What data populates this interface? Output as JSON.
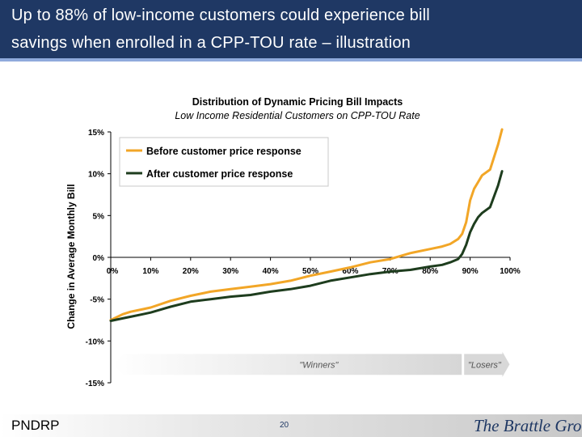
{
  "slide": {
    "title_line1": "Up to 88% of low-income customers could experience bill",
    "title_line2": "savings when enrolled in a CPP-TOU rate – illustration",
    "footer_left": "PNDRP",
    "page_number": "20",
    "brand": "The Brattle Group"
  },
  "colors": {
    "title_bg": "#1f3864",
    "series_before": "#f2a627",
    "series_after": "#1e3d1e",
    "arrow_fill": "#e2e2e2"
  },
  "chart_data": {
    "type": "line",
    "title": "Distribution of Dynamic Pricing Bill Impacts",
    "subtitle": "Low Income Residential Customers on CPP-TOU Rate",
    "xlabel": "",
    "ylabel": "Change in Average Monthly Bill",
    "x_unit": "percent of customers",
    "y_unit": "percent change",
    "xlim": [
      0,
      100
    ],
    "ylim": [
      -15,
      15
    ],
    "x_ticks": [
      "0%",
      "10%",
      "20%",
      "30%",
      "40%",
      "50%",
      "60%",
      "70%",
      "80%",
      "90%",
      "100%"
    ],
    "y_ticks": [
      "15%",
      "10%",
      "5%",
      "0%",
      "-5%",
      "-10%",
      "-15%"
    ],
    "grid": false,
    "legend_position": "top-left",
    "series": [
      {
        "name": "Before customer price response",
        "x": [
          0,
          3,
          5,
          8,
          10,
          15,
          20,
          25,
          30,
          35,
          40,
          45,
          50,
          55,
          60,
          65,
          70,
          75,
          80,
          83,
          85,
          87,
          88,
          89,
          90,
          91,
          92,
          93,
          95,
          97,
          98
        ],
        "y": [
          -7.5,
          -6.8,
          -6.5,
          -6.2,
          -6.0,
          -5.2,
          -4.6,
          -4.1,
          -3.8,
          -3.5,
          -3.2,
          -2.8,
          -2.2,
          -1.7,
          -1.2,
          -0.6,
          -0.2,
          0.5,
          1.0,
          1.3,
          1.6,
          2.2,
          2.8,
          4.2,
          6.8,
          8.2,
          9.0,
          9.8,
          10.5,
          13.5,
          15.3
        ]
      },
      {
        "name": "After customer price response",
        "x": [
          0,
          3,
          5,
          8,
          10,
          15,
          20,
          25,
          30,
          35,
          40,
          45,
          50,
          55,
          60,
          65,
          70,
          75,
          80,
          83,
          85,
          87,
          88,
          89,
          90,
          91,
          92,
          93,
          95,
          97,
          98
        ],
        "y": [
          -7.6,
          -7.3,
          -7.1,
          -6.8,
          -6.6,
          -5.9,
          -5.3,
          -5.0,
          -4.7,
          -4.5,
          -4.1,
          -3.8,
          -3.4,
          -2.8,
          -2.4,
          -2.0,
          -1.7,
          -1.5,
          -1.1,
          -0.9,
          -0.6,
          -0.2,
          0.4,
          1.5,
          3.0,
          4.0,
          4.8,
          5.3,
          6.0,
          8.6,
          10.3
        ]
      }
    ],
    "annotations": [
      {
        "text": "\"Winners\"",
        "x_from": 0,
        "x_to": 88
      },
      {
        "text": "\"Losers\"",
        "x_from": 88,
        "x_to": 100
      }
    ]
  }
}
